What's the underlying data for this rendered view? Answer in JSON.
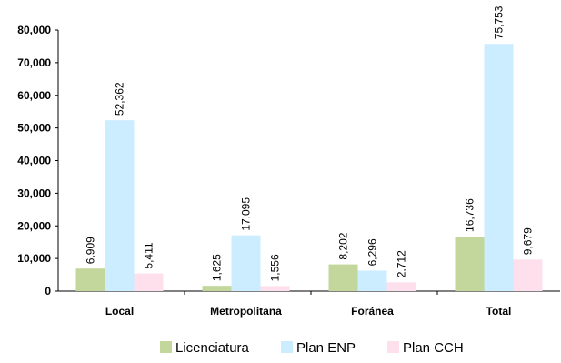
{
  "chart_data": {
    "type": "bar",
    "categories": [
      "Local",
      "Metropolitana",
      "Foránea",
      "Total"
    ],
    "series": [
      {
        "name": "Licenciatura",
        "color": "#c3d69b",
        "values": [
          6909,
          1625,
          8202,
          16736
        ],
        "labels": [
          "6,909",
          "1,625",
          "8,202",
          "16,736"
        ]
      },
      {
        "name": "Plan ENP",
        "color": "#ccecff",
        "values": [
          52362,
          17095,
          6296,
          75753
        ],
        "labels": [
          "52,362",
          "17,095",
          "6,296",
          "75,753"
        ]
      },
      {
        "name": "Plan CCH",
        "color": "#fde0ec",
        "values": [
          5411,
          1556,
          2712,
          9679
        ],
        "labels": [
          "5,411",
          "1,556",
          "2,712",
          "9,679"
        ]
      }
    ],
    "ylim": [
      0,
      80000
    ],
    "yticks": [
      "0",
      "10,000",
      "20,000",
      "30,000",
      "40,000",
      "50,000",
      "60,000",
      "70,000",
      "80,000"
    ],
    "grid": false,
    "legend_position": "bottom"
  }
}
